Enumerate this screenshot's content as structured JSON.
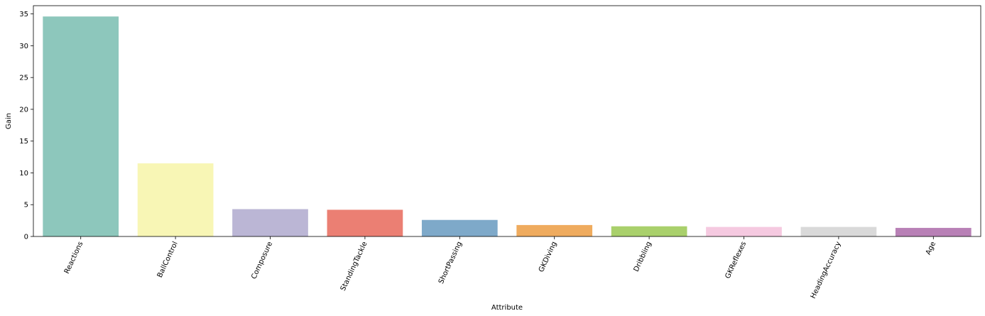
{
  "chart_data": {
    "type": "bar",
    "title": "",
    "xlabel": "Attribute",
    "ylabel": "Gain",
    "categories": [
      "Reactions",
      "BallControl",
      "Composure",
      "StandingTackle",
      "ShortPassing",
      "GKDiving",
      "Dribbling",
      "GKReflexes",
      "HeadingAccuracy",
      "Age"
    ],
    "values": [
      34.6,
      11.5,
      4.3,
      4.2,
      2.6,
      1.8,
      1.6,
      1.5,
      1.5,
      1.35
    ],
    "colors": [
      "#8dc7bc",
      "#f8f6b5",
      "#bbb6d5",
      "#eb7f73",
      "#7ea9c9",
      "#efab5e",
      "#a9d06b",
      "#f5c9e0",
      "#d9d9d9",
      "#b880b6"
    ],
    "ylim": [
      0,
      36.3
    ],
    "yticks": [
      0,
      5,
      10,
      15,
      20,
      25,
      30,
      35
    ],
    "grid": false,
    "legend": "none"
  }
}
